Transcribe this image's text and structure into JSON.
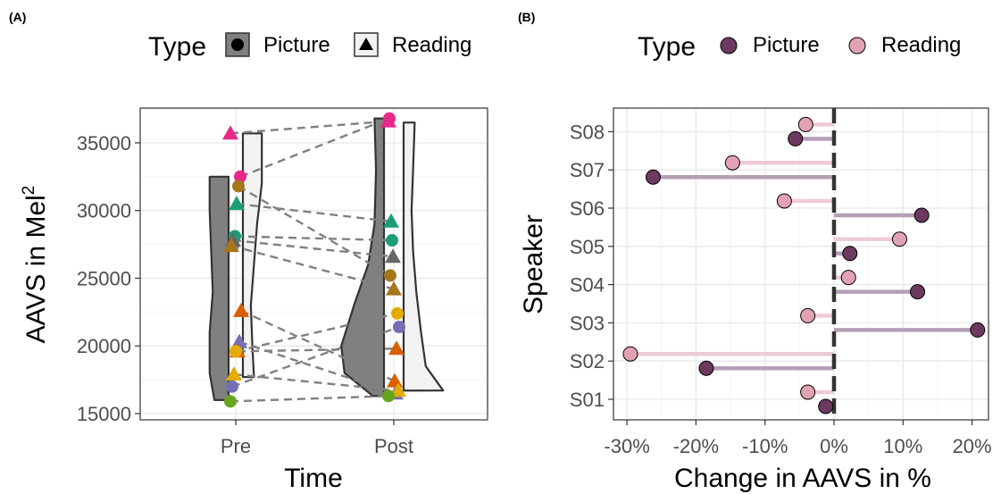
{
  "chart_data": [
    {
      "panel_label": "(A)",
      "type": "scatter",
      "subtype": "violin with paired points",
      "xlabel": "Time",
      "ylabel": "AAVS in Mel",
      "ylabel_superscript": "2",
      "categories": [
        "Pre",
        "Post"
      ],
      "ylim": [
        15000,
        37500
      ],
      "yticks": [
        "15000",
        "20000",
        "25000",
        "30000",
        "35000"
      ],
      "grid": true,
      "legend": {
        "title": "Type",
        "placement": "top",
        "items": [
          {
            "label": "Picture",
            "shape": "circle"
          },
          {
            "label": "Reading",
            "shape": "triangle"
          }
        ]
      },
      "violins": {
        "Picture": {
          "pre": [
            [
              16000,
              0.09
            ],
            [
              18000,
              0.12
            ],
            [
              21000,
              0.12
            ],
            [
              24000,
              0.1
            ],
            [
              27000,
              0.11
            ],
            [
              30000,
              0.12
            ],
            [
              32500,
              0.12
            ]
          ],
          "post": [
            [
              16300,
              0.07
            ],
            [
              18000,
              0.25
            ],
            [
              20000,
              0.27
            ],
            [
              23000,
              0.19
            ],
            [
              26000,
              0.1
            ],
            [
              29000,
              0.06
            ],
            [
              33000,
              0.05
            ],
            [
              36800,
              0.06
            ]
          ]
        },
        "Reading": {
          "pre": [
            [
              17700,
              0.07
            ],
            [
              20000,
              0.06
            ],
            [
              23000,
              0.05
            ],
            [
              26000,
              0.07
            ],
            [
              29000,
              0.09
            ],
            [
              32000,
              0.12
            ],
            [
              34000,
              0.12
            ],
            [
              35700,
              0.12
            ]
          ],
          "post": [
            [
              16700,
              0.25
            ],
            [
              18500,
              0.14
            ],
            [
              21000,
              0.11
            ],
            [
              24000,
              0.08
            ],
            [
              27000,
              0.06
            ],
            [
              30000,
              0.05
            ],
            [
              33000,
              0.06
            ],
            [
              36500,
              0.07
            ]
          ]
        }
      },
      "points": [
        {
          "pair": 1,
          "type": "Reading",
          "color": "#e7298a",
          "pre": 35700,
          "post": 36600
        },
        {
          "pair": 2,
          "type": "Picture",
          "color": "#e7298a",
          "pre": 32500,
          "post": 36800
        },
        {
          "pair": 3,
          "type": "Picture",
          "color": "#a6761d",
          "pre": 31800,
          "post": 25200
        },
        {
          "pair": 4,
          "type": "Reading",
          "color": "#1b9e77",
          "pre": 30500,
          "post": 29200
        },
        {
          "pair": 5,
          "type": "Picture",
          "color": "#1b9e77",
          "pre": 28100,
          "post": 27800
        },
        {
          "pair": 6,
          "type": "Reading",
          "color": "#666666",
          "pre": 27800,
          "post": 26600
        },
        {
          "pair": 7,
          "type": "Reading",
          "color": "#a6761d",
          "pre": 27400,
          "post": 24200
        },
        {
          "pair": 8,
          "type": "Reading",
          "color": "#d95f02",
          "pre": 22600,
          "post": 17400
        },
        {
          "pair": 9,
          "type": "Reading",
          "color": "#7570b3",
          "pre": 20300,
          "post": 16500
        },
        {
          "pair": 10,
          "type": "Reading",
          "color": "#d95f02",
          "pre": 19600,
          "post": 19800
        },
        {
          "pair": 11,
          "type": "Picture",
          "color": "#e6ab02",
          "pre": 19600,
          "post": 22400
        },
        {
          "pair": 12,
          "type": "Reading",
          "color": "#e6ab02",
          "pre": 17900,
          "post": 16700
        },
        {
          "pair": 13,
          "type": "Picture",
          "color": "#7570b3",
          "pre": 17000,
          "post": 21400
        },
        {
          "pair": 14,
          "type": "Picture",
          "color": "#66a61e",
          "pre": 15900,
          "post": 16300
        }
      ]
    },
    {
      "panel_label": "(B)",
      "type": "scatter",
      "subtype": "lollipop",
      "xlabel": "Change in AAVS in %",
      "ylabel": "Speaker",
      "categories": [
        "S01",
        "S02",
        "S03",
        "S04",
        "S05",
        "S06",
        "S07",
        "S08"
      ],
      "xlim": [
        -32,
        24
      ],
      "xticks": [
        "-30%",
        "-20%",
        "-10%",
        "0%",
        "10%",
        "20%"
      ],
      "grid": true,
      "legend": {
        "title": "Type",
        "placement": "top",
        "items": [
          {
            "label": "Picture",
            "color": "#6b3a5e"
          },
          {
            "label": "Reading",
            "color": "#e3a2b3"
          }
        ]
      },
      "series": [
        {
          "name": "Picture",
          "color": "#6b3a5e",
          "values": [
            -1.2,
            -18.5,
            20.8,
            12.1,
            2.3,
            12.7,
            -26.2,
            -5.6
          ]
        },
        {
          "name": "Reading",
          "color": "#e3a2b3",
          "values": [
            -3.8,
            -29.5,
            -3.8,
            2.1,
            9.5,
            -7.2,
            -14.7,
            -4.1
          ]
        }
      ]
    }
  ]
}
